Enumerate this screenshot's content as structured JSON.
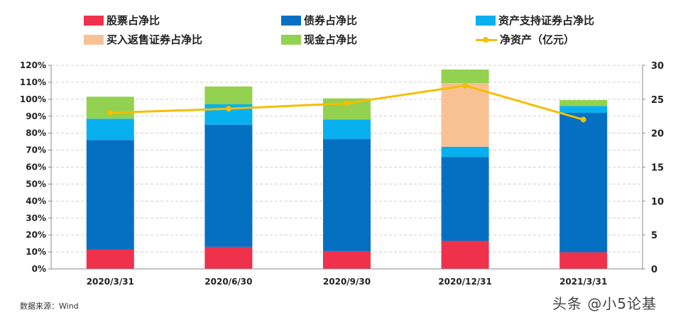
{
  "legend": [
    {
      "label": "股票占净比",
      "color": "#ef314c"
    },
    {
      "label": "债券占净比",
      "color": "#0570c2"
    },
    {
      "label": "资产支持证券占净比",
      "color": "#08b0f0"
    },
    {
      "label": "买入返售证券占净比",
      "color": "#f8c193"
    },
    {
      "label": "现金占净比",
      "color": "#93d150"
    },
    {
      "label": "净资产（亿元）",
      "color": "#f5be00"
    }
  ],
  "source": "数据来源：Wind",
  "watermark": "头条 @小5论基",
  "chart_data": {
    "type": "bar",
    "stacked": true,
    "categories": [
      "2020/3/31",
      "2020/6/30",
      "2020/9/30",
      "2020/12/31",
      "2021/3/31"
    ],
    "series": [
      {
        "name": "股票占净比",
        "values": [
          11.5,
          13,
          10.5,
          16.5,
          9.8
        ],
        "color": "#ef314c"
      },
      {
        "name": "债券占净比",
        "values": [
          64.5,
          72,
          66,
          49.5,
          82.2
        ],
        "color": "#0570c2"
      },
      {
        "name": "资产支持证券占净比",
        "values": [
          12.5,
          12,
          11.5,
          6,
          4
        ],
        "color": "#08b0f0"
      },
      {
        "name": "买入返售证券占净比",
        "values": [
          0,
          0,
          0,
          37.5,
          0
        ],
        "color": "#f8c193"
      },
      {
        "name": "现金占净比",
        "values": [
          13,
          10.5,
          12.5,
          8,
          3.5
        ],
        "color": "#93d150"
      }
    ],
    "line": {
      "name": "净资产（亿元）",
      "values": [
        23,
        23.6,
        24.4,
        27,
        22
      ],
      "color": "#f5be00",
      "axis": "right"
    },
    "yticks_left": [
      "0%",
      "10%",
      "20%",
      "30%",
      "40%",
      "50%",
      "60%",
      "70%",
      "80%",
      "90%",
      "100%",
      "110%",
      "120%"
    ],
    "yticks_right": [
      "0",
      "5",
      "10",
      "15",
      "20",
      "25",
      "30"
    ],
    "ylim_left": [
      0,
      120
    ],
    "ylim_right": [
      0,
      30
    ],
    "grid": true
  }
}
